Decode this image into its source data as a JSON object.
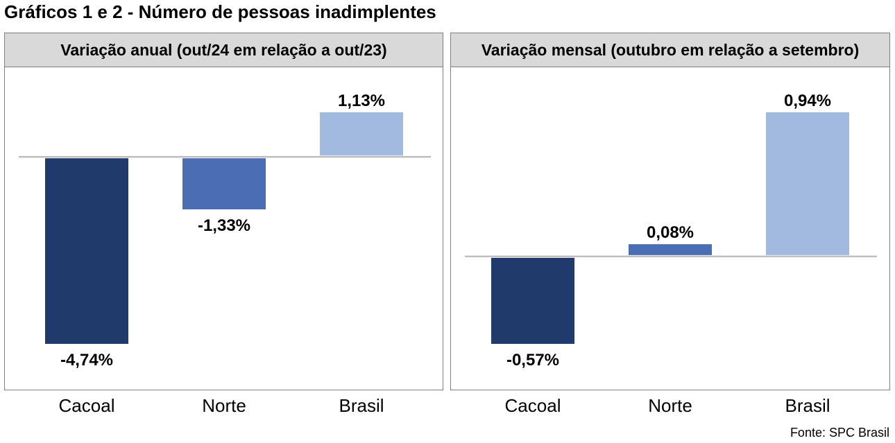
{
  "title": "Gráficos 1 e 2 - Número de pessoas inadimplentes",
  "source": "Fonte: SPC Brasil",
  "chart_data": [
    {
      "type": "bar",
      "title": "Variação anual (out/24 em relação a out/23)",
      "categories": [
        "Cacoal",
        "Norte",
        "Brasil"
      ],
      "values": [
        -4.74,
        -1.33,
        1.13
      ],
      "value_labels": [
        "-4,74%",
        "-1,33%",
        "1,13%"
      ],
      "colors": [
        "#1f3a6b",
        "#4a6db3",
        "#a2b9e0"
      ],
      "ylim": [
        -4.74,
        1.13
      ],
      "grid": false,
      "legend": "none"
    },
    {
      "type": "bar",
      "title": "Variação mensal (outubro em relação a setembro)",
      "categories": [
        "Cacoal",
        "Norte",
        "Brasil"
      ],
      "values": [
        -0.57,
        0.08,
        0.94
      ],
      "value_labels": [
        "-0,57%",
        "0,08%",
        "0,94%"
      ],
      "colors": [
        "#1f3a6b",
        "#4a6db3",
        "#a2b9e0"
      ],
      "ylim": [
        -0.57,
        0.94
      ],
      "grid": false,
      "legend": "none"
    }
  ]
}
